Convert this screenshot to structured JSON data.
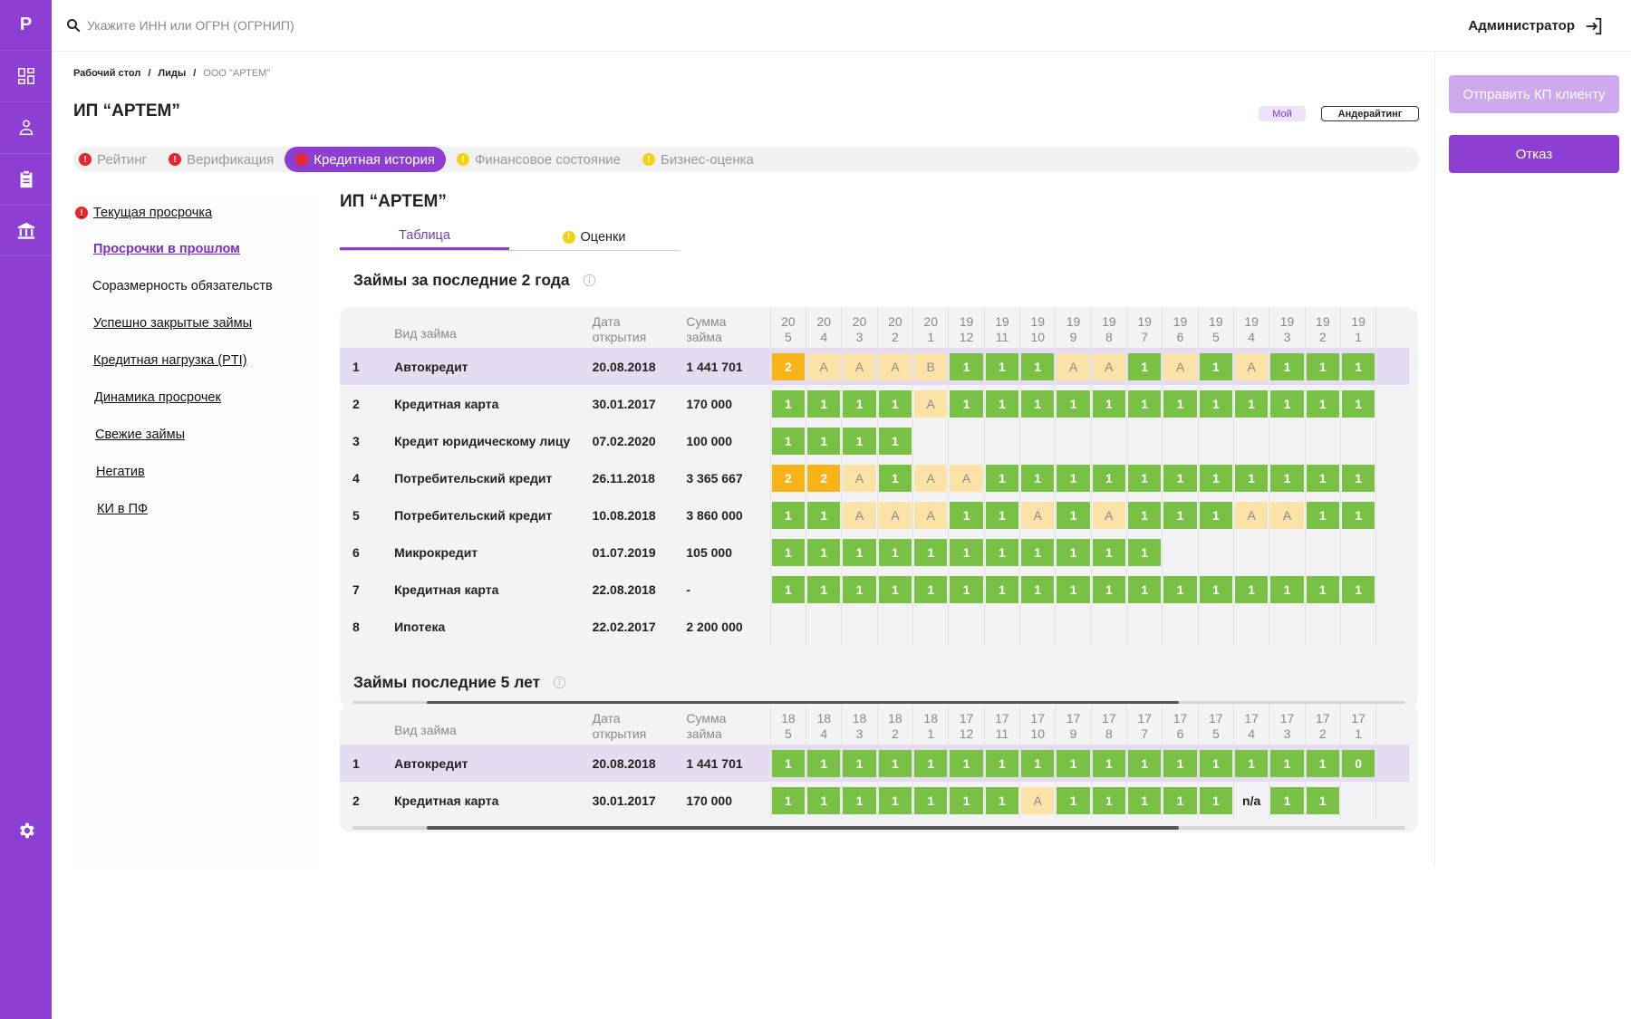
{
  "rail": {
    "logo": "P",
    "icons": [
      "dashboard-icon",
      "users-icon",
      "clipboard-icon",
      "bank-icon"
    ],
    "bottom_icon": "gear-icon"
  },
  "header": {
    "search_placeholder": "Укажите ИНН или ОГРН (ОГРНИП)",
    "user_label": "Администратор"
  },
  "breadcrumb": [
    "Рабочий стол",
    "Лиды",
    "ООО \"АРТЕМ\""
  ],
  "page_title": "ИП “АРТЕМ”",
  "chips": {
    "mine": "Мой",
    "underwriting": "Андерайтинг"
  },
  "tabs": [
    {
      "label": "Рейтинг",
      "status": "red"
    },
    {
      "label": "Верификация",
      "status": "red"
    },
    {
      "label": "Кредитная история",
      "status": "red",
      "active": true
    },
    {
      "label": "Финансовое состояние",
      "status": "yellow"
    },
    {
      "label": "Бизнес-оценка",
      "status": "yellow"
    }
  ],
  "actions": {
    "send_kp": "Отправить КП клиенту",
    "reject": "Отказ"
  },
  "sidenav": [
    "Текущая просрочка",
    "Просрочки в прошлом",
    "Соразмерность обязательств",
    "Успешно закрытые займы",
    "Кредитная нагрузка (PTI)",
    "Динамика просрочек",
    "Свежие займы",
    "Негатив",
    "КИ в ПФ"
  ],
  "content": {
    "title": "ИП “АРТЕМ”",
    "subtabs": [
      "Таблица",
      "Оценки"
    ]
  },
  "table_headers": {
    "type": "Вид займа",
    "date_1": "Дата",
    "date_2": "открытия",
    "sum_1": "Сумма",
    "sum_2": "займа"
  },
  "section1": {
    "title": "Займы за последние 2 года",
    "months": [
      [
        "20",
        "5"
      ],
      [
        "20",
        "4"
      ],
      [
        "20",
        "3"
      ],
      [
        "20",
        "2"
      ],
      [
        "20",
        "1"
      ],
      [
        "19",
        "12"
      ],
      [
        "19",
        "11"
      ],
      [
        "19",
        "10"
      ],
      [
        "19",
        "9"
      ],
      [
        "19",
        "8"
      ],
      [
        "19",
        "7"
      ],
      [
        "19",
        "6"
      ],
      [
        "19",
        "5"
      ],
      [
        "19",
        "4"
      ],
      [
        "19",
        "3"
      ],
      [
        "19",
        "2"
      ],
      [
        "19",
        "1"
      ]
    ],
    "rows": [
      {
        "n": "1",
        "type": "Автокредит",
        "date": "20.08.2018",
        "sum": "1 441 701",
        "highlight": true,
        "cells": [
          "2",
          "A",
          "A",
          "A",
          "B",
          "1",
          "1",
          "1",
          "A",
          "A",
          "1",
          "A",
          "1",
          "A",
          "1",
          "1",
          "1"
        ]
      },
      {
        "n": "2",
        "type": "Кредитная карта",
        "date": "30.01.2017",
        "sum": "170 000",
        "cells": [
          "1",
          "1",
          "1",
          "1",
          "A",
          "1",
          "1",
          "1",
          "1",
          "1",
          "1",
          "1",
          "1",
          "1",
          "1",
          "1",
          "1"
        ]
      },
      {
        "n": "3",
        "type": "Кредит юридическому лицу",
        "date": "07.02.2020",
        "sum": "100 000",
        "cells": [
          "1",
          "1",
          "1",
          "1",
          "",
          "",
          "",
          "",
          "",
          "",
          "",
          "",
          "",
          "",
          "",
          "",
          ""
        ]
      },
      {
        "n": "4",
        "type": "Потребительский кредит",
        "date": "26.11.2018",
        "sum": "3 365 667",
        "cells": [
          "2",
          "2",
          "A",
          "1",
          "A",
          "A",
          "1",
          "1",
          "1",
          "1",
          "1",
          "1",
          "1",
          "1",
          "1",
          "1",
          "1"
        ]
      },
      {
        "n": "5",
        "type": "Потребительский кредит",
        "date": "10.08.2018",
        "sum": "3 860 000",
        "cells": [
          "1",
          "1",
          "A",
          "A",
          "A",
          "1",
          "1",
          "A",
          "1",
          "A",
          "1",
          "1",
          "1",
          "A",
          "A",
          "1",
          "1"
        ]
      },
      {
        "n": "6",
        "type": "Микрокредит",
        "date": "01.07.2019",
        "sum": "105 000",
        "cells": [
          "1",
          "1",
          "1",
          "1",
          "1",
          "1",
          "1",
          "1",
          "1",
          "1",
          "1",
          "",
          "",
          "",
          "",
          "",
          ""
        ]
      },
      {
        "n": "7",
        "type": "Кредитная карта",
        "date": "22.08.2018",
        "sum": "-",
        "cells": [
          "1",
          "1",
          "1",
          "1",
          "1",
          "1",
          "1",
          "1",
          "1",
          "1",
          "1",
          "1",
          "1",
          "1",
          "1",
          "1",
          "1"
        ]
      },
      {
        "n": "8",
        "type": "Ипотека",
        "date": "22.02.2017",
        "sum": "2 200 000",
        "cells": [
          "",
          "",
          "",
          "",
          "",
          "",
          "",
          "",
          "",
          "",
          "",
          "",
          "",
          "",
          "",
          "",
          ""
        ]
      }
    ]
  },
  "section2": {
    "title": "Займы последние 5 лет",
    "months": [
      [
        "18",
        "5"
      ],
      [
        "18",
        "4"
      ],
      [
        "18",
        "3"
      ],
      [
        "18",
        "2"
      ],
      [
        "18",
        "1"
      ],
      [
        "17",
        "12"
      ],
      [
        "17",
        "11"
      ],
      [
        "17",
        "10"
      ],
      [
        "17",
        "9"
      ],
      [
        "17",
        "8"
      ],
      [
        "17",
        "7"
      ],
      [
        "17",
        "6"
      ],
      [
        "17",
        "5"
      ],
      [
        "17",
        "4"
      ],
      [
        "17",
        "3"
      ],
      [
        "17",
        "2"
      ],
      [
        "17",
        "1"
      ]
    ],
    "rows": [
      {
        "n": "1",
        "type": "Автокредит",
        "date": "20.08.2018",
        "sum": "1 441 701",
        "highlight": true,
        "cells": [
          "1",
          "1",
          "1",
          "1",
          "1",
          "1",
          "1",
          "1",
          "1",
          "1",
          "1",
          "1",
          "1",
          "1",
          "1",
          "1",
          "0"
        ]
      },
      {
        "n": "2",
        "type": "Кредитная карта",
        "date": "30.01.2017",
        "sum": "170 000",
        "cells": [
          "1",
          "1",
          "1",
          "1",
          "1",
          "1",
          "1",
          "A",
          "1",
          "1",
          "1",
          "1",
          "1",
          "n/a",
          "1",
          "1",
          ""
        ]
      }
    ]
  },
  "colors": {
    "accent": "#8c3fd2",
    "green": "#78c144",
    "amber": "#f7b318",
    "light_amber": "#fbe3a8",
    "red": "#e8262b",
    "yellow": "#f5d20f"
  }
}
